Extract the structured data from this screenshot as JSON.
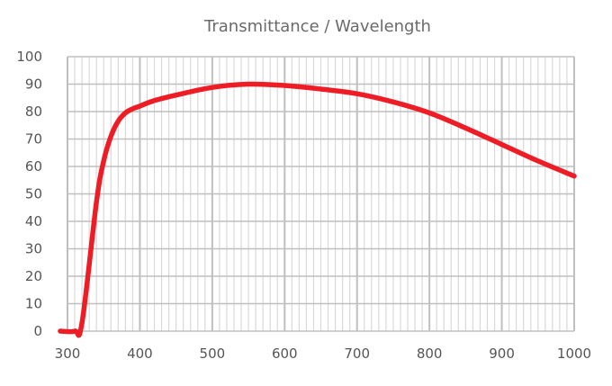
{
  "chart_data": {
    "type": "line",
    "title": "Transmittance / Wavelength",
    "xlabel": "",
    "ylabel": "",
    "xlim": [
      300,
      1000
    ],
    "ylim": [
      0,
      100
    ],
    "x_ticks": [
      300,
      400,
      500,
      600,
      700,
      800,
      900,
      1000
    ],
    "y_ticks": [
      0,
      10,
      20,
      30,
      40,
      50,
      60,
      70,
      80,
      90,
      100
    ],
    "x_minor_step": 10,
    "grid": true,
    "legend": "none",
    "series": [
      {
        "color": "#ee1c25",
        "x": [
          290,
          310,
          320,
          340,
          350,
          360,
          370,
          380,
          390,
          400,
          420,
          450,
          500,
          550,
          600,
          650,
          700,
          750,
          800,
          850,
          900,
          950,
          1000
        ],
        "y": [
          0,
          0,
          3,
          47,
          62,
          71,
          76.5,
          79.5,
          81,
          82,
          84,
          86,
          88.8,
          90,
          89.5,
          88.2,
          86.5,
          83.5,
          79.5,
          74,
          68,
          62,
          56.5
        ]
      }
    ]
  }
}
